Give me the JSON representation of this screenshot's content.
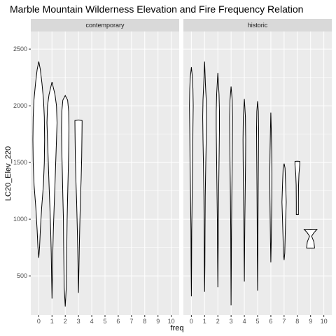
{
  "chart_data": {
    "type": "violin",
    "title": "Marble Mountain Wilderness Elevation and Fire Frequency Relation",
    "xlabel": "freq",
    "ylabel": "LC20_Elev_220",
    "x_ticks": [
      0,
      1,
      2,
      3,
      4,
      5,
      6,
      7,
      8,
      9,
      10
    ],
    "y_ticks": [
      500,
      1000,
      1500,
      2000,
      2500
    ],
    "ylim": [
      155,
      2655
    ],
    "xlim": [
      -0.6,
      10.6
    ],
    "grid": true,
    "panel_background": "#ebebeb",
    "strip_background": "#d9d9d9",
    "grid_color": "#ffffff",
    "violin_outline": "#000000",
    "violin_fill": "#ffffff",
    "panels": [
      {
        "label": "contemporary",
        "violins": [
          {
            "freq": 0,
            "profile": [
              [
                660,
                0
              ],
              [
                750,
                0.06
              ],
              [
                900,
                0.12
              ],
              [
                1100,
                0.22
              ],
              [
                1300,
                0.35
              ],
              [
                1500,
                0.42
              ],
              [
                1700,
                0.44
              ],
              [
                1900,
                0.42
              ],
              [
                2050,
                0.36
              ],
              [
                2200,
                0.24
              ],
              [
                2320,
                0.12
              ],
              [
                2390,
                0
              ]
            ]
          },
          {
            "freq": 1,
            "profile": [
              [
                300,
                0
              ],
              [
                500,
                0.03
              ],
              [
                700,
                0.06
              ],
              [
                900,
                0.1
              ],
              [
                1100,
                0.16
              ],
              [
                1300,
                0.22
              ],
              [
                1500,
                0.28
              ],
              [
                1700,
                0.34
              ],
              [
                1850,
                0.38
              ],
              [
                2000,
                0.34
              ],
              [
                2100,
                0.22
              ],
              [
                2210,
                0
              ]
            ]
          },
          {
            "freq": 2,
            "profile": [
              [
                230,
                0
              ],
              [
                400,
                0.08
              ],
              [
                600,
                0.1
              ],
              [
                800,
                0.12
              ],
              [
                1000,
                0.14
              ],
              [
                1200,
                0.18
              ],
              [
                1400,
                0.22
              ],
              [
                1600,
                0.26
              ],
              [
                1800,
                0.28
              ],
              [
                1950,
                0.26
              ],
              [
                2050,
                0.18
              ],
              [
                2090,
                0
              ]
            ]
          },
          {
            "freq": 3,
            "profile": [
              [
                350,
                0
              ],
              [
                550,
                0.03
              ],
              [
                750,
                0.06
              ],
              [
                950,
                0.1
              ],
              [
                1150,
                0.14
              ],
              [
                1350,
                0.2
              ],
              [
                1550,
                0.24
              ],
              [
                1750,
                0.26
              ],
              [
                1870,
                0.27
              ],
              [
                1875,
                0
              ]
            ]
          }
        ]
      },
      {
        "label": "historic",
        "violins": [
          {
            "freq": 0,
            "profile": [
              [
                320,
                0
              ],
              [
                600,
                0.02
              ],
              [
                900,
                0.03
              ],
              [
                1200,
                0.06
              ],
              [
                1500,
                0.1
              ],
              [
                1800,
                0.12
              ],
              [
                2000,
                0.14
              ],
              [
                2150,
                0.12
              ],
              [
                2250,
                0.08
              ],
              [
                2340,
                0
              ]
            ]
          },
          {
            "freq": 1,
            "profile": [
              [
                360,
                0
              ],
              [
                600,
                0.02
              ],
              [
                900,
                0.03
              ],
              [
                1200,
                0.05
              ],
              [
                1500,
                0.09
              ],
              [
                1700,
                0.12
              ],
              [
                1900,
                0.14
              ],
              [
                2050,
                0.12
              ],
              [
                2200,
                0.06
              ],
              [
                2390,
                0
              ]
            ]
          },
          {
            "freq": 2,
            "profile": [
              [
                400,
                0
              ],
              [
                700,
                0.02
              ],
              [
                1000,
                0.04
              ],
              [
                1300,
                0.07
              ],
              [
                1600,
                0.1
              ],
              [
                1800,
                0.12
              ],
              [
                1950,
                0.12
              ],
              [
                2100,
                0.09
              ],
              [
                2290,
                0
              ]
            ]
          },
          {
            "freq": 3,
            "profile": [
              [
                240,
                0
              ],
              [
                600,
                0.02
              ],
              [
                900,
                0.03
              ],
              [
                1200,
                0.05
              ],
              [
                1500,
                0.08
              ],
              [
                1700,
                0.1
              ],
              [
                1900,
                0.11
              ],
              [
                2050,
                0.08
              ],
              [
                2170,
                0
              ]
            ]
          },
          {
            "freq": 4,
            "profile": [
              [
                450,
                0
              ],
              [
                700,
                0.02
              ],
              [
                1000,
                0.04
              ],
              [
                1300,
                0.07
              ],
              [
                1500,
                0.09
              ],
              [
                1700,
                0.1
              ],
              [
                1900,
                0.08
              ],
              [
                2060,
                0
              ]
            ]
          },
          {
            "freq": 5,
            "profile": [
              [
                370,
                0
              ],
              [
                700,
                0.02
              ],
              [
                1000,
                0.03
              ],
              [
                1300,
                0.05
              ],
              [
                1600,
                0.07
              ],
              [
                1800,
                0.08
              ],
              [
                1950,
                0.06
              ],
              [
                2040,
                0
              ]
            ]
          },
          {
            "freq": 6,
            "profile": [
              [
                620,
                0
              ],
              [
                800,
                0.03
              ],
              [
                1000,
                0.05
              ],
              [
                1200,
                0.07
              ],
              [
                1400,
                0.08
              ],
              [
                1600,
                0.06
              ],
              [
                1800,
                0.03
              ],
              [
                1940,
                0
              ]
            ]
          },
          {
            "freq": 7,
            "profile": [
              [
                640,
                0
              ],
              [
                700,
                0.05
              ],
              [
                850,
                0.08
              ],
              [
                1000,
                0.12
              ],
              [
                1150,
                0.16
              ],
              [
                1300,
                0.12
              ],
              [
                1450,
                0.07
              ],
              [
                1490,
                0
              ]
            ]
          },
          {
            "freq": 8,
            "profile": [
              [
                1040,
                0
              ],
              [
                1041,
                0.08
              ],
              [
                1150,
                0.08
              ],
              [
                1300,
                0.09
              ],
              [
                1400,
                0.12
              ],
              [
                1480,
                0.18
              ],
              [
                1510,
                0.18
              ],
              [
                1511,
                0
              ]
            ]
          },
          {
            "freq": 9,
            "profile": [
              [
                745,
                0
              ],
              [
                746,
                0.3
              ],
              [
                800,
                0.25
              ],
              [
                850,
                0.08
              ],
              [
                880,
                0.25
              ],
              [
                910,
                0.48
              ],
              [
                911,
                0
              ]
            ]
          }
        ]
      }
    ]
  }
}
